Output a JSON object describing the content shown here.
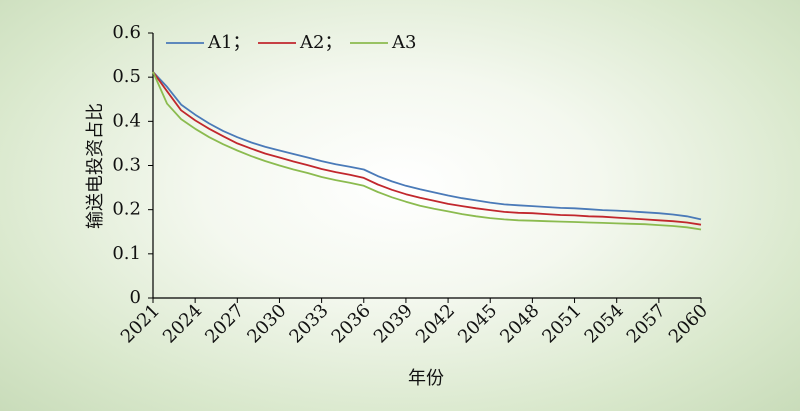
{
  "chart_data": {
    "type": "line",
    "title": "",
    "xlabel": "年份",
    "ylabel": "输送电投资占比",
    "x": [
      2021,
      2022,
      2023,
      2024,
      2025,
      2026,
      2027,
      2028,
      2029,
      2030,
      2031,
      2032,
      2033,
      2034,
      2035,
      2036,
      2037,
      2038,
      2039,
      2040,
      2041,
      2042,
      2043,
      2044,
      2045,
      2046,
      2047,
      2048,
      2049,
      2050,
      2051,
      2052,
      2053,
      2054,
      2055,
      2056,
      2057,
      2058,
      2059,
      2060
    ],
    "x_ticks": [
      "2021",
      "2024",
      "2027",
      "2030",
      "2033",
      "2036",
      "2039",
      "2042",
      "2045",
      "2048",
      "2051",
      "2054",
      "2057",
      "2060"
    ],
    "xlim": [
      2021,
      2060
    ],
    "y_ticks": [
      "0",
      "0.1",
      "0.2",
      "0.3",
      "0.4",
      "0.5",
      "0.6"
    ],
    "ylim": [
      0,
      0.6
    ],
    "grid": false,
    "legend": {
      "placement": "top-left",
      "separator": "；"
    },
    "series": [
      {
        "name": "A1",
        "color": "#4a7ab8",
        "values": [
          0.512,
          0.478,
          0.438,
          0.415,
          0.395,
          0.378,
          0.364,
          0.352,
          0.342,
          0.334,
          0.326,
          0.318,
          0.31,
          0.303,
          0.297,
          0.291,
          0.276,
          0.264,
          0.254,
          0.246,
          0.239,
          0.232,
          0.226,
          0.221,
          0.216,
          0.212,
          0.21,
          0.208,
          0.206,
          0.204,
          0.203,
          0.201,
          0.199,
          0.198,
          0.196,
          0.194,
          0.192,
          0.189,
          0.185,
          0.178
        ]
      },
      {
        "name": "A2",
        "color": "#c1272d",
        "values": [
          0.512,
          0.468,
          0.425,
          0.402,
          0.383,
          0.366,
          0.35,
          0.338,
          0.327,
          0.318,
          0.309,
          0.301,
          0.292,
          0.285,
          0.279,
          0.272,
          0.257,
          0.245,
          0.235,
          0.227,
          0.22,
          0.213,
          0.208,
          0.203,
          0.199,
          0.195,
          0.193,
          0.192,
          0.19,
          0.188,
          0.187,
          0.185,
          0.184,
          0.182,
          0.18,
          0.178,
          0.176,
          0.174,
          0.171,
          0.166
        ]
      },
      {
        "name": "A3",
        "color": "#8bbb4f",
        "values": [
          0.512,
          0.44,
          0.405,
          0.383,
          0.364,
          0.348,
          0.334,
          0.321,
          0.31,
          0.3,
          0.291,
          0.283,
          0.274,
          0.267,
          0.261,
          0.254,
          0.24,
          0.228,
          0.218,
          0.209,
          0.202,
          0.196,
          0.19,
          0.185,
          0.181,
          0.178,
          0.176,
          0.175,
          0.174,
          0.173,
          0.172,
          0.171,
          0.17,
          0.169,
          0.168,
          0.167,
          0.165,
          0.163,
          0.16,
          0.155
        ]
      }
    ]
  }
}
